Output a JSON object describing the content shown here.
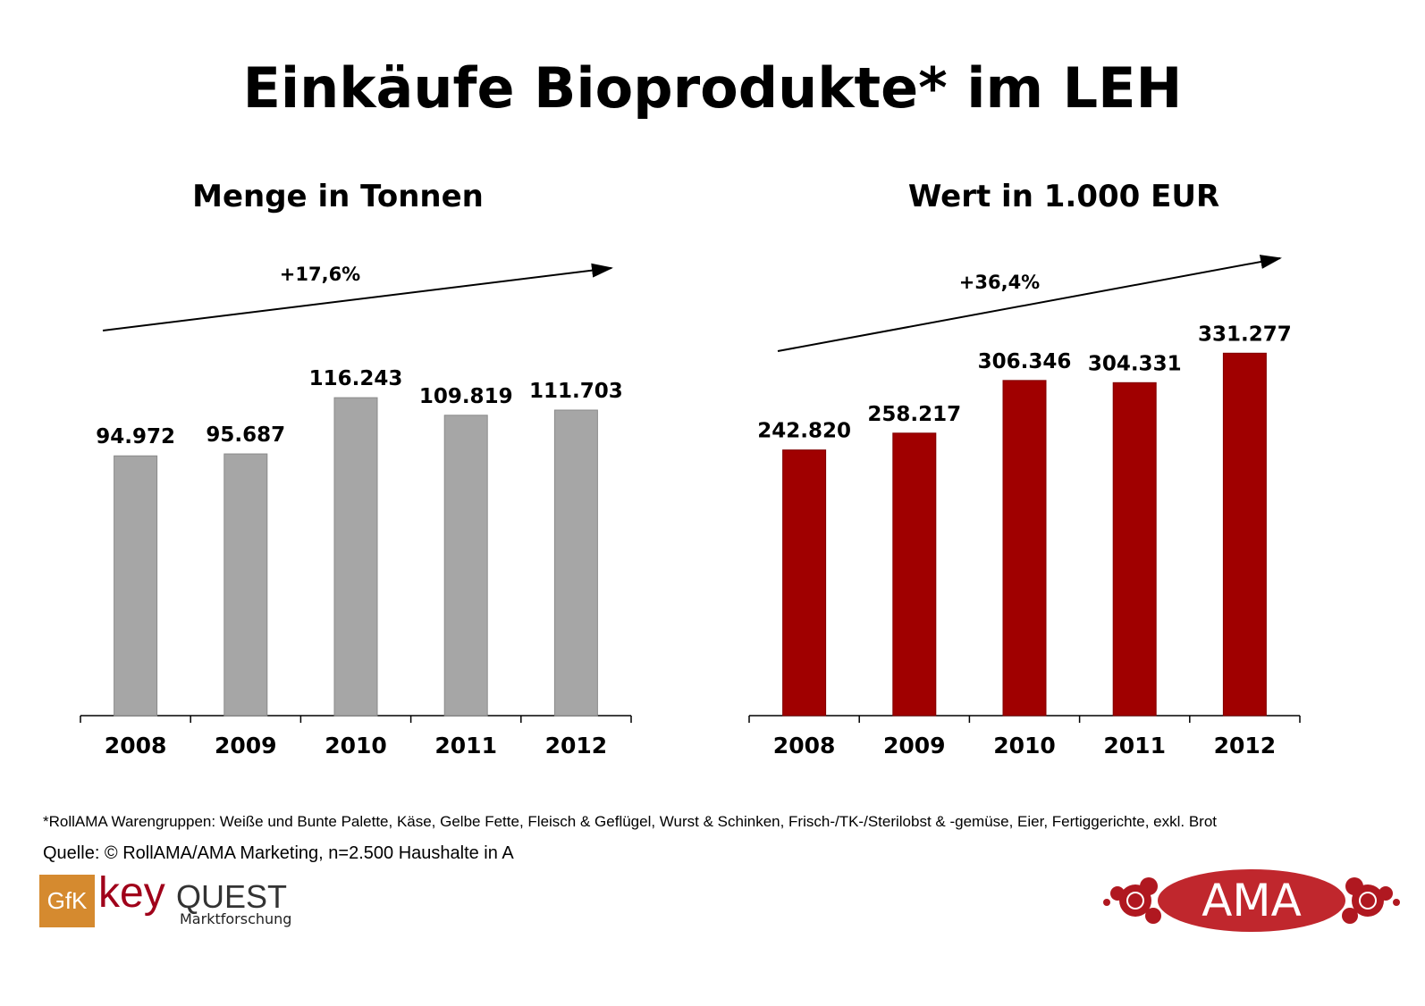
{
  "title": "Einkäufe Bioprodukte* im LEH",
  "chart_data": [
    {
      "type": "bar",
      "title": "Menge in Tonnen",
      "categories": [
        "2008",
        "2009",
        "2010",
        "2011",
        "2012"
      ],
      "values": [
        94972,
        95687,
        116243,
        109819,
        111703
      ],
      "labels": [
        "94.972",
        "95.687",
        "116.243",
        "109.819",
        "111.703"
      ],
      "ylim": [
        0,
        130000
      ],
      "color": "#a6a6a6",
      "trend_label": "+17,6%",
      "grid": false
    },
    {
      "type": "bar",
      "title": "Wert in 1.000 EUR",
      "categories": [
        "2008",
        "2009",
        "2010",
        "2011",
        "2012"
      ],
      "values": [
        242820,
        258217,
        306346,
        304331,
        331277
      ],
      "labels": [
        "242.820",
        "258.217",
        "306.346",
        "304.331",
        "331.277"
      ],
      "ylim": [
        0,
        325000
      ],
      "color": "#a00000",
      "trend_label": "+36,4%",
      "grid": false
    }
  ],
  "footer": {
    "note": "*RollAMA Warengruppen: Weiße und Bunte Palette, Käse, Gelbe Fette, Fleisch & Geflügel, Wurst & Schinken, Frisch-/TK-/Sterilobst & -gemüse,  Eier,  Fertiggerichte, exkl. Brot",
    "source": "Quelle: © RollAMA/AMA Marketing, n=2.500 Haushalte in A"
  },
  "logos": {
    "gfk": "GfK",
    "key": "key",
    "quest": "QUEST",
    "marktforschung": "Marktforschung",
    "ama": "AMA"
  }
}
